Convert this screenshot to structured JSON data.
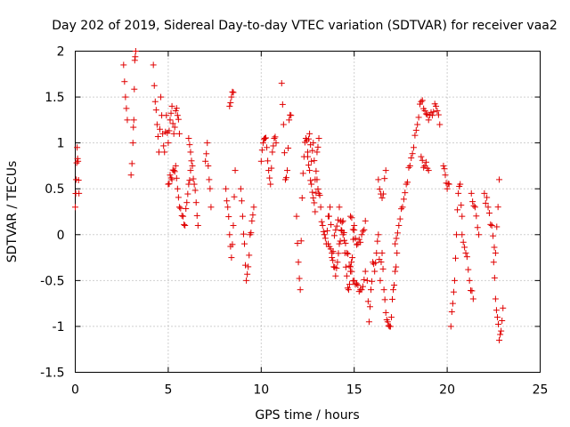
{
  "chart_data": {
    "type": "scatter",
    "title": "Day 202 of 2019, Sidereal Day-to-day VTEC variation (SDTVAR) for receiver vaa2",
    "xlabel": "GPS time / hours",
    "ylabel": "SDTVAR / TECUs",
    "xlim": [
      0,
      25
    ],
    "ylim": [
      -1.5,
      2
    ],
    "xticks": [
      0,
      5,
      10,
      15,
      20,
      25
    ],
    "yticks": [
      -1.5,
      -1,
      -0.5,
      0,
      0.5,
      1,
      1.5,
      2
    ],
    "xtick_labels": [
      "0",
      "5",
      "10",
      "15",
      "20",
      "25"
    ],
    "ytick_labels": [
      "-1.5",
      "-1",
      "-0.5",
      "0",
      "0.5",
      "1",
      "1.5",
      "2"
    ],
    "grid": true,
    "marker": "+",
    "color": "#e00000",
    "series": [
      {
        "name": "SDTVAR",
        "segments": [
          {
            "x": [
              0.0,
              0.05,
              0.1,
              0.15,
              0.2
            ],
            "y": [
              0.3,
              0.6,
              0.95,
              0.8,
              0.45
            ]
          },
          {
            "x": [
              2.6,
              2.7,
              2.8
            ],
            "y": [
              1.85,
              1.5,
              1.25
            ]
          },
          {
            "x": [
              3.0,
              3.1,
              3.15,
              3.2,
              3.25
            ],
            "y": [
              0.65,
              1.0,
              1.25,
              1.9,
              2.0
            ]
          },
          {
            "x": [
              4.2,
              4.3,
              4.4,
              4.5,
              4.6,
              4.7,
              4.8,
              4.9,
              5.0,
              5.1,
              5.2,
              5.3,
              5.4,
              5.5,
              5.6
            ],
            "y": [
              1.85,
              1.45,
              1.2,
              0.9,
              1.5,
              1.1,
              0.9,
              1.3,
              1.0,
              1.25,
              1.4,
              1.1,
              1.35,
              1.3,
              1.1
            ]
          },
          {
            "x": [
              5.0,
              5.1,
              5.2,
              5.3,
              5.4,
              5.5,
              5.6,
              5.8,
              5.9,
              6.0,
              6.1,
              6.2
            ],
            "y": [
              0.55,
              0.65,
              0.6,
              0.7,
              0.75,
              0.5,
              0.3,
              0.2,
              0.1,
              0.35,
              0.55,
              0.7
            ]
          },
          {
            "x": [
              6.1,
              6.2,
              6.3,
              6.4,
              6.5,
              6.6
            ],
            "y": [
              1.05,
              0.9,
              0.75,
              0.55,
              0.35,
              0.1
            ]
          },
          {
            "x": [
              7.0,
              7.1,
              7.2,
              7.3
            ],
            "y": [
              0.8,
              1.0,
              0.6,
              0.3
            ]
          },
          {
            "x": [
              8.1,
              8.2,
              8.3,
              8.4,
              8.5,
              8.6
            ],
            "y": [
              0.5,
              0.3,
              0.0,
              -0.25,
              0.1,
              0.7
            ]
          },
          {
            "x": [
              8.3,
              8.4,
              8.5
            ],
            "y": [
              1.4,
              1.5,
              1.55
            ]
          },
          {
            "x": [
              8.9,
              9.0,
              9.1,
              9.2,
              9.3,
              9.4,
              9.5,
              9.6
            ],
            "y": [
              0.5,
              0.2,
              -0.1,
              -0.5,
              -0.35,
              0.0,
              0.15,
              0.3
            ]
          },
          {
            "x": [
              10.0,
              10.1,
              10.2,
              10.3,
              10.4,
              10.5,
              10.6,
              10.7,
              10.8
            ],
            "y": [
              0.8,
              1.0,
              1.05,
              0.95,
              0.7,
              0.55,
              0.9,
              1.05,
              1.0
            ]
          },
          {
            "x": [
              11.1,
              11.2,
              11.3,
              11.4,
              11.5,
              11.6
            ],
            "y": [
              1.65,
              1.2,
              0.6,
              0.7,
              1.25,
              1.3
            ]
          },
          {
            "x": [
              11.9,
              12.0,
              12.1,
              12.2,
              12.3,
              12.4,
              12.5,
              12.6,
              12.7,
              12.8,
              12.9,
              13.0,
              13.1
            ],
            "y": [
              0.2,
              -0.3,
              -0.6,
              0.4,
              0.85,
              1.05,
              0.9,
              1.1,
              0.8,
              1.0,
              0.6,
              0.9,
              1.05
            ]
          },
          {
            "x": [
              12.5,
              12.6,
              12.7,
              12.8,
              12.9,
              13.0,
              13.1,
              13.2,
              13.3,
              13.4,
              13.5,
              13.6,
              13.7,
              13.8,
              13.9,
              14.0,
              14.1,
              14.2,
              14.3,
              14.4,
              14.5,
              14.6,
              14.7,
              14.8,
              14.9,
              15.0
            ],
            "y": [
              0.85,
              0.7,
              0.55,
              0.4,
              0.25,
              0.6,
              0.45,
              0.3,
              0.1,
              0.0,
              -0.1,
              0.2,
              0.3,
              -0.2,
              -0.35,
              -0.45,
              -0.3,
              -0.1,
              0.05,
              0.15,
              -0.2,
              -0.45,
              -0.6,
              -0.4,
              -0.25,
              0.1
            ]
          },
          {
            "x": [
              13.6,
              13.8,
              14.0,
              14.2,
              14.4,
              14.6,
              14.8,
              15.0,
              15.2,
              15.4,
              15.6
            ],
            "y": [
              -0.1,
              -0.25,
              0.05,
              0.3,
              0.0,
              -0.2,
              -0.35,
              -0.5,
              -0.55,
              -0.6,
              -0.4
            ]
          },
          {
            "x": [
              14.8,
              15.0,
              15.2,
              15.4,
              15.6
            ],
            "y": [
              0.2,
              0.05,
              -0.1,
              0.0,
              0.15
            ]
          },
          {
            "x": [
              15.7,
              15.8,
              15.9,
              16.0,
              16.1,
              16.2,
              16.3,
              16.4,
              16.5,
              16.6,
              16.7,
              16.8,
              16.9,
              17.0,
              17.1,
              17.2,
              17.3
            ],
            "y": [
              -0.5,
              -0.95,
              -0.6,
              -0.3,
              -0.4,
              -0.2,
              0.0,
              -0.5,
              -0.2,
              -0.6,
              -0.85,
              -0.95,
              -1.0,
              -0.9,
              -0.6,
              -0.4,
              -0.2
            ]
          },
          {
            "x": [
              16.3,
              16.5,
              16.7
            ],
            "y": [
              0.6,
              0.4,
              0.7
            ]
          },
          {
            "x": [
              17.2,
              17.4,
              17.6,
              17.8,
              18.0,
              18.2,
              18.4,
              18.6,
              18.8,
              19.0,
              19.2,
              19.4,
              19.6
            ],
            "y": [
              -0.1,
              0.1,
              0.3,
              0.55,
              0.75,
              0.95,
              1.2,
              1.45,
              1.35,
              1.25,
              1.3,
              1.4,
              1.2
            ]
          },
          {
            "x": [
              18.6,
              18.8,
              19.0
            ],
            "y": [
              0.85,
              0.75,
              0.7
            ]
          },
          {
            "x": [
              19.8,
              19.9,
              20.0,
              20.1
            ],
            "y": [
              0.75,
              0.65,
              0.5,
              0.55
            ]
          },
          {
            "x": [
              20.2,
              20.3,
              20.4,
              20.5,
              20.6,
              20.7,
              20.8
            ],
            "y": [
              -1.0,
              -0.75,
              -0.5,
              0.0,
              0.45,
              0.55,
              0.2
            ]
          },
          {
            "x": [
              20.8,
              21.0,
              21.2,
              21.4
            ],
            "y": [
              0.0,
              -0.2,
              -0.5,
              -0.7
            ]
          },
          {
            "x": [
              21.3,
              21.5,
              21.7
            ],
            "y": [
              0.45,
              0.3,
              0.0
            ]
          },
          {
            "x": [
              22.0,
              22.2,
              22.4,
              22.6,
              22.8
            ],
            "y": [
              0.45,
              0.3,
              0.1,
              -0.2,
              0.6
            ]
          },
          {
            "x": [
              22.5,
              22.6,
              22.7,
              22.8,
              22.9,
              23.0
            ],
            "y": [
              -0.3,
              -0.7,
              -0.9,
              -1.15,
              -1.05,
              -0.8
            ]
          }
        ]
      }
    ]
  }
}
